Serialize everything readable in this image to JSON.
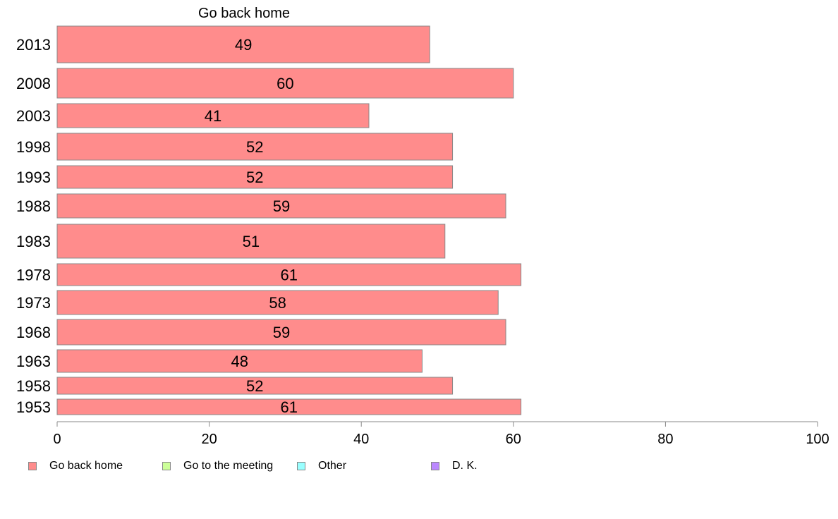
{
  "chart_data": {
    "type": "bar",
    "orientation": "horizontal",
    "title": "Go back home",
    "categories": [
      "2013",
      "2008",
      "2003",
      "1998",
      "1993",
      "1988",
      "1983",
      "1978",
      "1973",
      "1968",
      "1963",
      "1958",
      "1953"
    ],
    "series": [
      {
        "name": "Go back home",
        "color": "#ff8c8c",
        "values": [
          49,
          60,
          41,
          52,
          52,
          59,
          51,
          61,
          58,
          59,
          48,
          52,
          61
        ],
        "value_labels": [
          "49",
          "60",
          "41",
          "52",
          "52",
          "59",
          "51",
          "61",
          "58",
          "59",
          "48",
          "52",
          "61"
        ]
      }
    ],
    "xlim": [
      0,
      100
    ],
    "xticks": [
      0,
      20,
      40,
      60,
      80,
      100
    ],
    "xtick_labels": [
      "0",
      "20",
      "40",
      "60",
      "80",
      "100"
    ],
    "grid": false,
    "legend_position": "bottom-left",
    "legend": [
      {
        "label": "Go back home",
        "color": "#ff8c8c"
      },
      {
        "label": "Go to the meeting",
        "color": "#ccff99"
      },
      {
        "label": "Other",
        "color": "#99ffff"
      },
      {
        "label": "D. K.",
        "color": "#bb88ff"
      }
    ]
  }
}
